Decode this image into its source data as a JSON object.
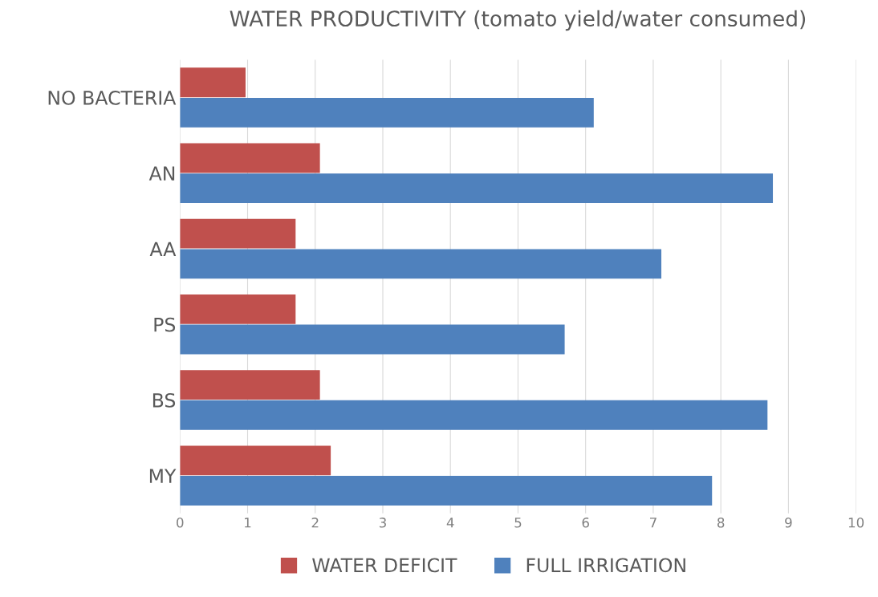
{
  "chart_data": {
    "type": "bar",
    "orientation": "horizontal",
    "title": "WATER PRODUCTIVITY (tomato yield/water consumed)",
    "categories": [
      "NO BACTERIA",
      "AN",
      "AA",
      "PS",
      "BS",
      "MY"
    ],
    "series": [
      {
        "name": "WATER DEFICIT",
        "color": "#c0504d",
        "values": [
          0.97,
          2.07,
          1.71,
          1.71,
          2.07,
          2.23
        ]
      },
      {
        "name": "FULL IRRIGATION",
        "color": "#4f81bd",
        "values": [
          6.12,
          8.77,
          7.12,
          5.69,
          8.69,
          7.87
        ]
      }
    ],
    "xlim": [
      0,
      10
    ],
    "xticks": [
      0,
      1,
      2,
      3,
      4,
      5,
      6,
      7,
      8,
      9,
      10
    ],
    "grid": "x",
    "legend": "bottom"
  }
}
